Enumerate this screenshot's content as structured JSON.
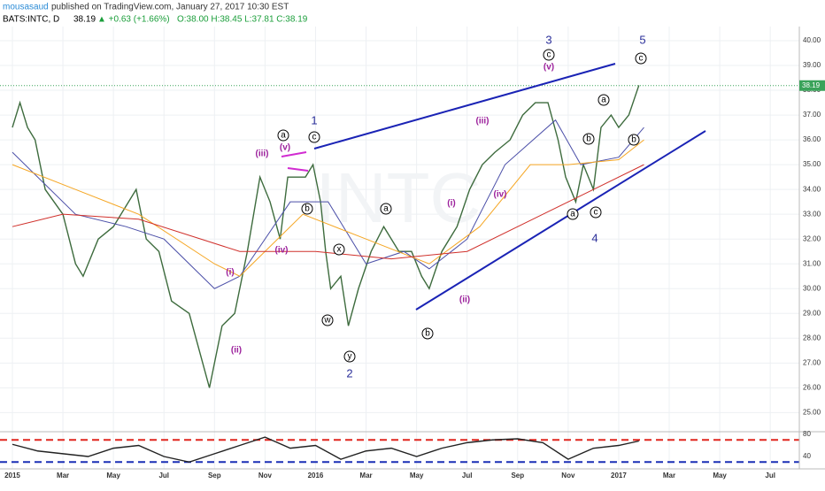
{
  "header": {
    "author": "mousasaud",
    "published": "published on TradingView.com, January 27, 2017 10:30 EST",
    "symbol": "BATS:INTC, D",
    "price": "38.19",
    "change": "▲ +0.63 (+1.66%)",
    "ohlc": "O:38.00 H:38.45 L:37.81 C:38.19"
  },
  "watermark": "INTC",
  "annotations": [
    "1",
    "2",
    "3",
    "4",
    "5",
    "a",
    "c",
    "b",
    "x",
    "w",
    "y",
    "a",
    "b",
    "c",
    "a",
    "b",
    "b",
    "a",
    "c",
    "c",
    "(iii)",
    "(v)",
    "(iv)",
    "(i)",
    "(ii)",
    "(i)",
    "(ii)",
    "(iii)",
    "(iv)",
    "(v)"
  ],
  "chart_data": [
    {
      "type": "line",
      "xlim": [
        -0.49,
        31.15
      ],
      "ylim": [
        24.3,
        40.5
      ],
      "grid": true,
      "last_price": 38.19,
      "xticks": [
        {
          "value": 0,
          "label": "2015"
        },
        {
          "value": 2,
          "label": "Mar"
        },
        {
          "value": 4,
          "label": "May"
        },
        {
          "value": 6,
          "label": "Jul"
        },
        {
          "value": 8,
          "label": "Sep"
        },
        {
          "value": 10,
          "label": "Nov"
        },
        {
          "value": 12,
          "label": "2016"
        },
        {
          "value": 14,
          "label": "Mar"
        },
        {
          "value": 16,
          "label": "May"
        },
        {
          "value": 18,
          "label": "Jul"
        },
        {
          "value": 20,
          "label": "Sep"
        },
        {
          "value": 22,
          "label": "Nov"
        },
        {
          "value": 24,
          "label": "2017"
        },
        {
          "value": 26,
          "label": "Mar"
        },
        {
          "value": 28,
          "label": "May"
        },
        {
          "value": 30,
          "label": "Jul"
        }
      ],
      "yticks": [
        {
          "value": 25,
          "label": "25.00"
        },
        {
          "value": 26,
          "label": "26.00"
        },
        {
          "value": 27,
          "label": "27.00"
        },
        {
          "value": 28,
          "label": "28.00"
        },
        {
          "value": 29,
          "label": "29.00"
        },
        {
          "value": 30,
          "label": "30.00"
        },
        {
          "value": 31,
          "label": "31.00"
        },
        {
          "value": 32,
          "label": "32.00"
        },
        {
          "value": 33,
          "label": "33.00"
        },
        {
          "value": 34,
          "label": "34.00"
        },
        {
          "value": 35,
          "label": "35.00"
        },
        {
          "value": 36,
          "label": "36.00"
        },
        {
          "value": 37,
          "label": "37.00"
        },
        {
          "value": 38,
          "label": "38.00"
        },
        {
          "value": 39,
          "label": "39.00"
        },
        {
          "value": 40,
          "label": "40.00"
        }
      ],
      "series": [
        {
          "color": "#3d6b3d",
          "x": [
            0,
            0.3,
            0.6,
            0.9,
            1.3,
            2,
            2.5,
            2.8,
            3.4,
            4,
            4.9,
            5.3,
            5.8,
            6.3,
            7,
            7.8,
            8.3,
            8.8,
            9.3,
            9.8,
            10.2,
            10.6,
            10.9,
            11.6,
            11.9,
            12.2,
            12.4,
            12.6,
            13,
            13.3,
            13.7,
            14.2,
            14.7,
            15.3,
            15.8,
            16.2,
            16.5,
            17,
            17.6,
            18.1,
            18.6,
            19.1,
            19.7,
            20.2,
            20.7,
            21.2,
            21.6,
            21.9,
            22.3,
            22.6,
            23,
            23.3,
            23.7,
            24,
            24.4,
            24.8
          ],
          "values": [
            36.5,
            37.5,
            36.5,
            36,
            34,
            33,
            31,
            30.5,
            32,
            32.5,
            34,
            32,
            31.5,
            29.5,
            29,
            26,
            28.5,
            29,
            31.5,
            34.5,
            33.5,
            32,
            34.5,
            34.5,
            35,
            33.5,
            31.5,
            30,
            30.5,
            28.5,
            30,
            31.5,
            32.5,
            31.5,
            31.5,
            30.5,
            30,
            31.5,
            32.5,
            34,
            35,
            35.5,
            36,
            37,
            37.5,
            37.5,
            36,
            34.5,
            33.5,
            35,
            34,
            36.5,
            37,
            36.5,
            37,
            38.2
          ]
        },
        {
          "color": "#4b4fa8",
          "x": [
            0,
            2.5,
            4.5,
            6,
            8,
            9,
            11,
            12.5,
            14,
            15.5,
            16.5,
            18,
            19.5,
            21.5,
            22.5,
            24,
            25
          ],
          "values": [
            35.5,
            33,
            32.5,
            32,
            30,
            30.5,
            33.5,
            33.5,
            31,
            31.5,
            30.8,
            32,
            35,
            36.8,
            35,
            35.3,
            36.5
          ]
        },
        {
          "color": "#f5a623",
          "x": [
            0,
            2.5,
            5,
            8,
            9,
            11.5,
            14,
            16.5,
            18.5,
            20.5,
            22,
            24,
            25
          ],
          "values": [
            35,
            34,
            33,
            31,
            30.5,
            33,
            32,
            31,
            32.5,
            35,
            35,
            35.2,
            36
          ]
        },
        {
          "color": "#d0302b",
          "x": [
            0,
            2,
            5,
            9,
            12,
            15,
            18,
            21,
            23,
            25
          ],
          "values": [
            32.5,
            33,
            32.8,
            31.5,
            31.5,
            31.2,
            31.5,
            33,
            34,
            35
          ]
        }
      ]
    },
    {
      "type": "line",
      "ylim": [
        20.8,
        81.6
      ],
      "yticks": [
        40,
        80
      ],
      "levels": [
        70,
        30
      ],
      "level_colors": [
        "#e0261f",
        "#1a2fb5"
      ],
      "series": [
        {
          "color": "#222222",
          "x": [
            0,
            1,
            2,
            3,
            4,
            5,
            6,
            7,
            8,
            9,
            10,
            11,
            12,
            13,
            14,
            15,
            16,
            17,
            18,
            19,
            20,
            21,
            22,
            23,
            24,
            24.8
          ],
          "values": [
            62,
            50,
            45,
            40,
            55,
            60,
            40,
            30,
            45,
            60,
            75,
            55,
            60,
            35,
            50,
            55,
            40,
            55,
            65,
            70,
            72,
            65,
            35,
            55,
            60,
            68
          ]
        }
      ]
    }
  ]
}
